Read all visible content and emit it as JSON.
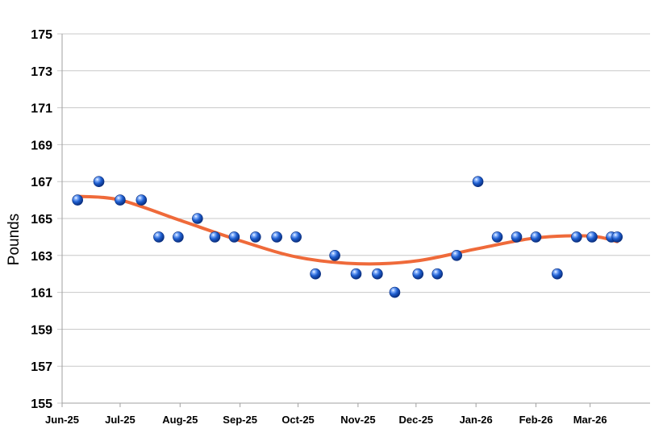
{
  "chart_data": {
    "type": "scatter",
    "title": "",
    "xlabel": "",
    "ylabel": "Pounds",
    "ylim": [
      155,
      175
    ],
    "yticks": [
      "155",
      "157",
      "159",
      "161",
      "163",
      "165",
      "167",
      "169",
      "171",
      "173",
      "175"
    ],
    "xlim": [
      "2025-06-01",
      "2026-04-01"
    ],
    "xticks": [
      {
        "label": "Jun-25",
        "date": "2025-06-01"
      },
      {
        "label": "Jul-25",
        "date": "2025-07-01"
      },
      {
        "label": "Aug-25",
        "date": "2025-08-01"
      },
      {
        "label": "Sep-25",
        "date": "2025-09-01"
      },
      {
        "label": "Oct-25",
        "date": "2025-10-01"
      },
      {
        "label": "Nov-25",
        "date": "2025-11-01"
      },
      {
        "label": "Dec-25",
        "date": "2025-12-01"
      },
      {
        "label": "Jan-26",
        "date": "2026-01-01"
      },
      {
        "label": "Feb-26",
        "date": "2026-02-01"
      },
      {
        "label": "Mar-26",
        "date": "2026-03-01"
      }
    ],
    "grid": true,
    "legend": "none",
    "series": [
      {
        "marker_color": "#1f5fd0",
        "points": [
          {
            "x": "2025-06-09",
            "y": 166
          },
          {
            "x": "2025-06-20",
            "y": 167
          },
          {
            "x": "2025-07-01",
            "y": 166
          },
          {
            "x": "2025-07-12",
            "y": 166
          },
          {
            "x": "2025-07-21",
            "y": 164
          },
          {
            "x": "2025-07-31",
            "y": 164
          },
          {
            "x": "2025-08-10",
            "y": 165
          },
          {
            "x": "2025-08-19",
            "y": 164
          },
          {
            "x": "2025-08-29",
            "y": 164
          },
          {
            "x": "2025-09-09",
            "y": 164
          },
          {
            "x": "2025-09-20",
            "y": 164
          },
          {
            "x": "2025-09-30",
            "y": 164
          },
          {
            "x": "2025-10-10",
            "y": 162
          },
          {
            "x": "2025-10-20",
            "y": 163
          },
          {
            "x": "2025-10-31",
            "y": 162
          },
          {
            "x": "2025-11-11",
            "y": 162
          },
          {
            "x": "2025-11-20",
            "y": 161
          },
          {
            "x": "2025-12-02",
            "y": 162
          },
          {
            "x": "2025-12-12",
            "y": 162
          },
          {
            "x": "2025-12-22",
            "y": 163
          },
          {
            "x": "2026-01-02",
            "y": 167
          },
          {
            "x": "2026-01-12",
            "y": 164
          },
          {
            "x": "2026-01-22",
            "y": 164
          },
          {
            "x": "2026-02-01",
            "y": 164
          },
          {
            "x": "2026-02-12",
            "y": 162
          },
          {
            "x": "2026-02-22",
            "y": 164
          },
          {
            "x": "2026-03-02",
            "y": 164
          },
          {
            "x": "2026-03-12",
            "y": 164
          },
          {
            "x": "2026-03-15",
            "y": 164
          }
        ]
      }
    ],
    "trendline": {
      "type": "smooth",
      "color": "#ef6a3a",
      "points": [
        {
          "x": "2025-06-09",
          "y": 166.2
        },
        {
          "x": "2025-07-01",
          "y": 166.0
        },
        {
          "x": "2025-08-01",
          "y": 164.9
        },
        {
          "x": "2025-09-01",
          "y": 163.8
        },
        {
          "x": "2025-10-01",
          "y": 162.9
        },
        {
          "x": "2025-11-01",
          "y": 162.55
        },
        {
          "x": "2025-12-01",
          "y": 162.7
        },
        {
          "x": "2026-01-01",
          "y": 163.35
        },
        {
          "x": "2026-02-01",
          "y": 163.95
        },
        {
          "x": "2026-03-01",
          "y": 164.05
        },
        {
          "x": "2026-03-15",
          "y": 163.75
        }
      ]
    }
  }
}
